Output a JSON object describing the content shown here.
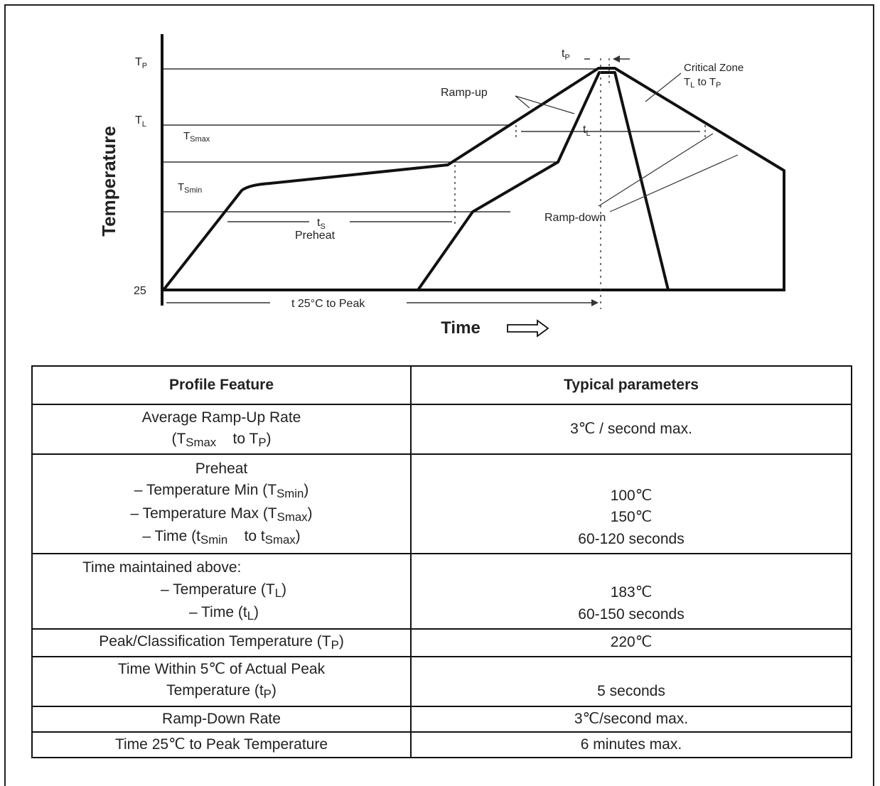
{
  "chart": {
    "y_axis_title": "Temperature",
    "x_axis_title": "Time",
    "y_labels": {
      "tp": "T",
      "tp_sub": "P",
      "tl": "T",
      "tl_sub": "L",
      "t25": "25"
    },
    "annotations": {
      "tsmax": "T",
      "tsmax_sub": "Smax",
      "tsmin": "T",
      "tsmin_sub": "Smin",
      "ts": "t",
      "ts_sub": "S",
      "preheat": "Preheat",
      "ramp_up": "Ramp-up",
      "ramp_down": "Ramp-down",
      "tl_time": "t",
      "tl_time_sub": "L",
      "tp_time": "t",
      "tp_time_sub": "P",
      "critical_zone": "Critical Zone",
      "critical_range": "T",
      "critical_range_sub1": "L",
      "critical_range_mid": " to T",
      "critical_range_sub2": "P",
      "t25_to_peak": "t 25°C to Peak"
    }
  },
  "table": {
    "headers": [
      "Profile Feature",
      "Typical parameters"
    ],
    "rows": {
      "ramp_up": {
        "feature_line1": "Average Ramp-Up Rate",
        "feature_line2_a": "(T",
        "feature_line2_sub1": "Smax",
        "feature_line2_b": "to T",
        "feature_line2_sub2": "P",
        "feature_line2_c": ")",
        "value": "3℃ / second max."
      },
      "preheat": {
        "title": "Preheat",
        "min_a": "– Temperature Min (T",
        "min_sub": "Smin",
        "min_b": ")",
        "max_a": "– Temperature Max (T",
        "max_sub": "Smax",
        "max_b": ")",
        "time_a": "– Time (t",
        "time_sub1": "Smin",
        "time_b": "to t",
        "time_sub2": "Smax",
        "time_c": ")",
        "value_min": "100℃",
        "value_max": "150℃",
        "value_time": "60-120 seconds"
      },
      "above": {
        "title": "Time maintained above:",
        "temp_a": "– Temperature (T",
        "temp_sub": "L",
        "temp_b": ")",
        "time_a": "– Time (t",
        "time_sub": "L",
        "time_b": ")",
        "value_temp": "183℃",
        "value_time": "60-150 seconds"
      },
      "peak": {
        "feature_a": "Peak/Classification Temperature (T",
        "feature_sub": "P",
        "feature_b": ")",
        "value": "220℃"
      },
      "within": {
        "line1": "Time Within 5℃ of Actual Peak",
        "line2_a": "Temperature (t",
        "line2_sub": "P",
        "line2_b": ")",
        "value": "5 seconds"
      },
      "ramp_down": {
        "feature": "Ramp-Down Rate",
        "value": "3℃/second max."
      },
      "total": {
        "feature": "Time 25℃ to Peak Temperature",
        "value": "6 minutes max."
      }
    }
  }
}
